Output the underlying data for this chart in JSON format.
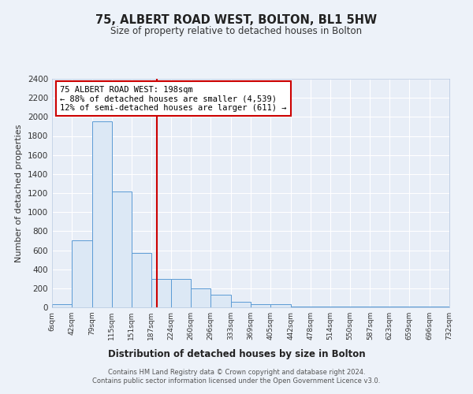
{
  "title": "75, ALBERT ROAD WEST, BOLTON, BL1 5HW",
  "subtitle": "Size of property relative to detached houses in Bolton",
  "xlabel": "Distribution of detached houses by size in Bolton",
  "ylabel": "Number of detached properties",
  "bin_edges": [
    6,
    42,
    79,
    115,
    151,
    187,
    224,
    260,
    296,
    333,
    369,
    405,
    442,
    478,
    514,
    550,
    587,
    623,
    659,
    696,
    732
  ],
  "bar_heights": [
    30,
    700,
    1950,
    1220,
    570,
    300,
    300,
    200,
    130,
    60,
    30,
    30,
    5,
    5,
    5,
    5,
    5,
    5,
    5,
    5
  ],
  "bar_color": "#dce8f5",
  "bar_edge_color": "#5b9bd5",
  "ylim": [
    0,
    2400
  ],
  "yticks": [
    0,
    200,
    400,
    600,
    800,
    1000,
    1200,
    1400,
    1600,
    1800,
    2000,
    2200,
    2400
  ],
  "property_size": 198,
  "red_line_color": "#cc0000",
  "annotation_text": "75 ALBERT ROAD WEST: 198sqm\n← 88% of detached houses are smaller (4,539)\n12% of semi-detached houses are larger (611) →",
  "annotation_box_color": "#ffffff",
  "annotation_box_edge": "#cc0000",
  "footer_text": "Contains HM Land Registry data © Crown copyright and database right 2024.\nContains public sector information licensed under the Open Government Licence v3.0.",
  "bg_color": "#edf2f9",
  "grid_color": "#ffffff",
  "plot_bg_color": "#e8eef7"
}
